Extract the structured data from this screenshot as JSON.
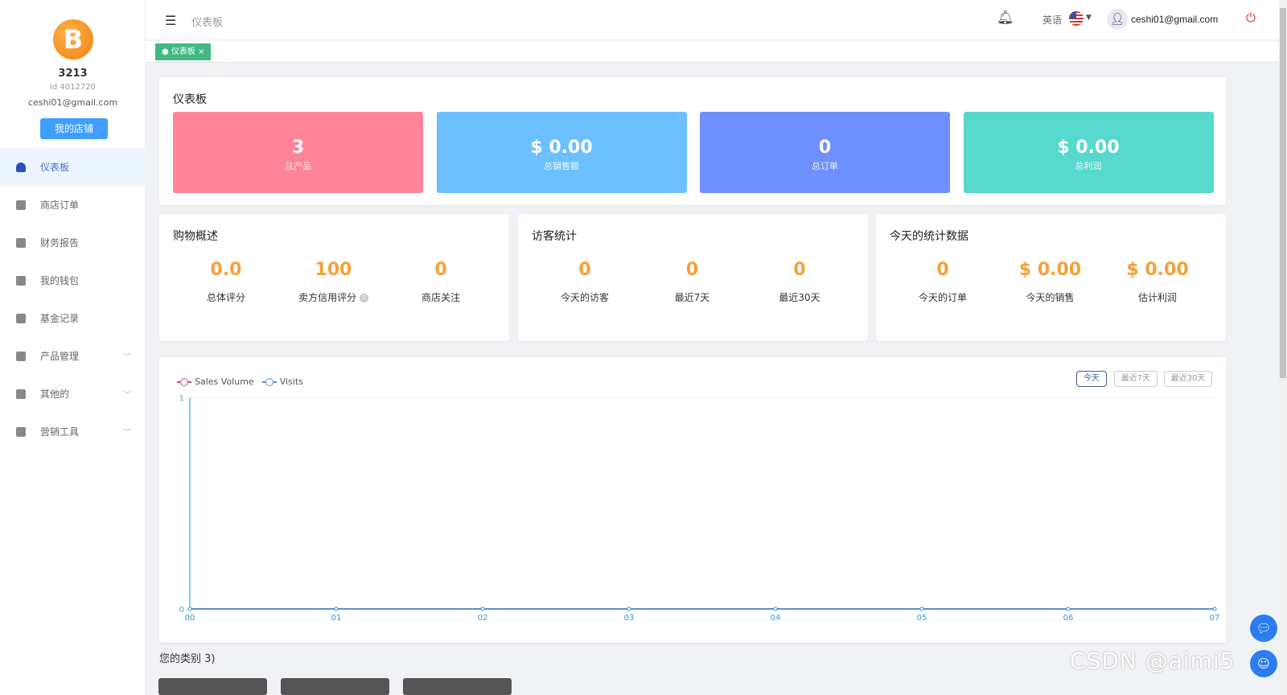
{
  "sidebar": {
    "username": "3213",
    "user_id": "id 4012720",
    "email": "ceshi01@gmail.com",
    "shop_button": "我的店铺",
    "items": [
      {
        "label": "仪表板",
        "icon": "dashboard-icon",
        "active": true
      },
      {
        "label": "商店订单",
        "icon": "clipboard-icon"
      },
      {
        "label": "财务报告",
        "icon": "chart-icon"
      },
      {
        "label": "我的钱包",
        "icon": "wallet-icon"
      },
      {
        "label": "基金记录",
        "icon": "record-icon"
      },
      {
        "label": "产品管理",
        "icon": "briefcase-icon",
        "expandable": true
      },
      {
        "label": "其他的",
        "icon": "grid-icon",
        "expandable": true
      },
      {
        "label": "营销工具",
        "icon": "bar-chart-icon",
        "expandable": true
      }
    ]
  },
  "header": {
    "breadcrumb": "仪表板",
    "language": "英语",
    "email": "ceshi01@gmail.com"
  },
  "tabs": [
    {
      "label": "仪表板",
      "close": "×"
    }
  ],
  "dashboard": {
    "title": "仪表板",
    "stats": [
      {
        "value": "3",
        "label": "总产品",
        "color": "#fe8497"
      },
      {
        "value": "$ 0.00",
        "label": "总销售额",
        "color": "#6cc0ff"
      },
      {
        "value": "0",
        "label": "总订单",
        "color": "#6f8ffc"
      },
      {
        "value": "$ 0.00",
        "label": "总利润",
        "color": "#56d8cc"
      }
    ]
  },
  "panels": [
    {
      "title": "购物概述",
      "items": [
        {
          "value": "0.0",
          "label": "总体评分"
        },
        {
          "value": "100",
          "label": "卖方信用评分",
          "help": "?"
        },
        {
          "value": "0",
          "label": "商店关注"
        }
      ]
    },
    {
      "title": "访客统计",
      "items": [
        {
          "value": "0",
          "label": "今天的访客"
        },
        {
          "value": "0",
          "label": "最近7天"
        },
        {
          "value": "0",
          "label": "最近30天"
        }
      ]
    },
    {
      "title": "今天的统计数据",
      "items": [
        {
          "value": "0",
          "label": "今天的订单"
        },
        {
          "value": "$ 0.00",
          "label": "今天的销售"
        },
        {
          "value": "$ 0.00",
          "label": "估计利润"
        }
      ]
    }
  ],
  "range_buttons": [
    {
      "label": "今天",
      "active": true
    },
    {
      "label": "最近7天"
    },
    {
      "label": "最近30天"
    }
  ],
  "chart_data": {
    "type": "line",
    "categories": [
      "00",
      "01",
      "02",
      "03",
      "04",
      "05",
      "06",
      "07"
    ],
    "ylim": [
      0,
      1
    ],
    "yticks": [
      "0",
      "1"
    ],
    "series": [
      {
        "name": "Sales Volume",
        "values": [
          0,
          0,
          0,
          0,
          0,
          0,
          0,
          0
        ],
        "color": "#d14a7e"
      },
      {
        "name": "Visits",
        "values": [
          0,
          0,
          0,
          0,
          0,
          0,
          0,
          0
        ],
        "color": "#5b8fd6"
      }
    ],
    "legend": "top-left",
    "grid": false
  },
  "categories_title": "您的类别 3)",
  "watermark": "CSDN @aimi5"
}
